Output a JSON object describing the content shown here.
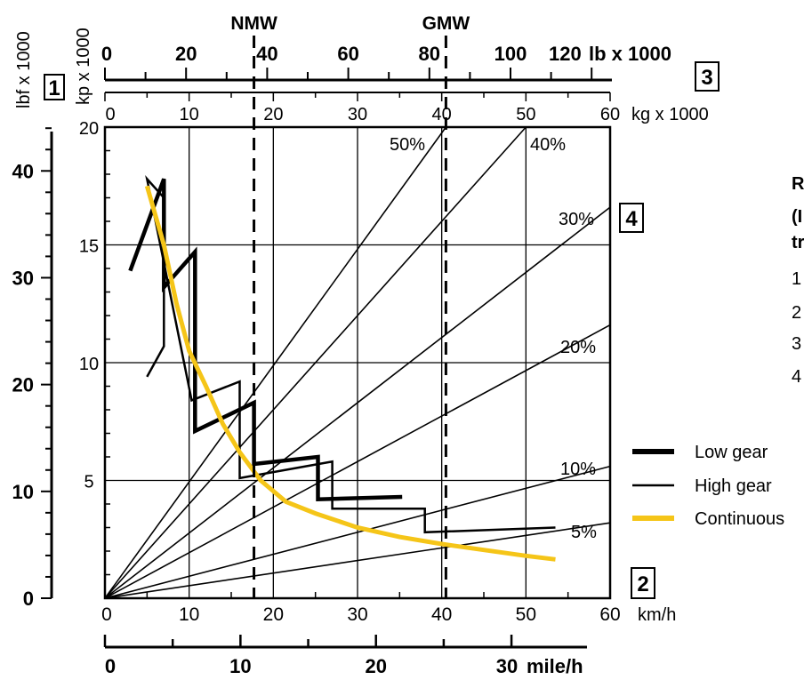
{
  "chart_data": {
    "type": "line",
    "top_markers": [
      {
        "label": "NMW",
        "kg_x1000": 17.7
      },
      {
        "label": "GMW",
        "kg_x1000": 40.5
      }
    ],
    "axes": {
      "y_kp": {
        "label": "kp x 1000",
        "range": [
          0,
          20
        ],
        "ticks": [
          "0",
          "5",
          "10",
          "15",
          "20"
        ]
      },
      "y_lbf": {
        "label": "lbf x 1000",
        "range": [
          0,
          44.1
        ],
        "ticks": [
          "0",
          "10",
          "20",
          "30",
          "40"
        ]
      },
      "x_kmh": {
        "label": "km/h",
        "range": [
          0,
          60
        ],
        "ticks": [
          "0",
          "10",
          "20",
          "30",
          "40",
          "50",
          "60"
        ]
      },
      "x_mph": {
        "label": "mile/h",
        "ticks": [
          "0",
          "10",
          "20",
          "30"
        ]
      },
      "top_kg": {
        "label": "kg x 1000",
        "range": [
          0,
          60
        ],
        "ticks": [
          "0",
          "10",
          "20",
          "30",
          "40",
          "50",
          "60"
        ]
      },
      "top_lb": {
        "label": "lb x 1000",
        "ticks": [
          "0",
          "20",
          "40",
          "60",
          "80",
          "100",
          "120"
        ]
      }
    },
    "box_labels": [
      "1",
      "2",
      "3",
      "4"
    ],
    "grade_lines": [
      {
        "label": "50%",
        "x": 40.5,
        "y": 20
      },
      {
        "label": "40%",
        "x": 50,
        "y": 20
      },
      {
        "label": "30%",
        "x": 60,
        "y": 16.6
      },
      {
        "label": "20%",
        "x": 60,
        "y": 11.6
      },
      {
        "label": "10%",
        "x": 60,
        "y": 5.6
      },
      {
        "label": "5%",
        "x": 60,
        "y": 3.2
      }
    ],
    "series": [
      {
        "name": "Low gear",
        "color": "#000000",
        "points": [
          [
            3,
            13.9
          ],
          [
            7,
            17.8
          ],
          [
            7,
            13.2
          ],
          [
            10.7,
            14.7
          ],
          [
            10.7,
            7.1
          ],
          [
            17.7,
            8.3
          ],
          [
            17.7,
            5.7
          ],
          [
            25.3,
            6.0
          ],
          [
            25.3,
            4.2
          ],
          [
            35.3,
            4.3
          ]
        ]
      },
      {
        "name": "High gear",
        "color": "#000000",
        "points": [
          [
            5,
            9.4
          ],
          [
            7,
            10.7
          ],
          [
            7,
            17.0
          ],
          [
            5,
            17.8
          ],
          [
            10.3,
            8.4
          ],
          [
            16,
            9.2
          ],
          [
            16,
            5.1
          ],
          [
            27,
            5.8
          ],
          [
            27,
            3.8
          ],
          [
            38,
            3.8
          ],
          [
            38,
            2.8
          ],
          [
            53.5,
            3.0
          ]
        ]
      },
      {
        "name": "Continuous",
        "color": "#f5c518",
        "points": [
          [
            5,
            17.5
          ],
          [
            7,
            15.0
          ],
          [
            8.5,
            12.5
          ],
          [
            10,
            10.5
          ],
          [
            12,
            9.0
          ],
          [
            14,
            7.4
          ],
          [
            16,
            6.2
          ],
          [
            18.5,
            5.0
          ],
          [
            21.5,
            4.1
          ],
          [
            25,
            3.6
          ],
          [
            30,
            3.0
          ],
          [
            35,
            2.6
          ],
          [
            40,
            2.3
          ],
          [
            45,
            2.05
          ],
          [
            50,
            1.8
          ],
          [
            53.5,
            1.65
          ]
        ]
      }
    ],
    "legend": {
      "placement": "right",
      "entries": [
        "Low gear",
        "High gear",
        "Continuous"
      ]
    },
    "side_text": [
      "R",
      "(I",
      "tr",
      "1",
      "2",
      "3",
      "4"
    ]
  }
}
